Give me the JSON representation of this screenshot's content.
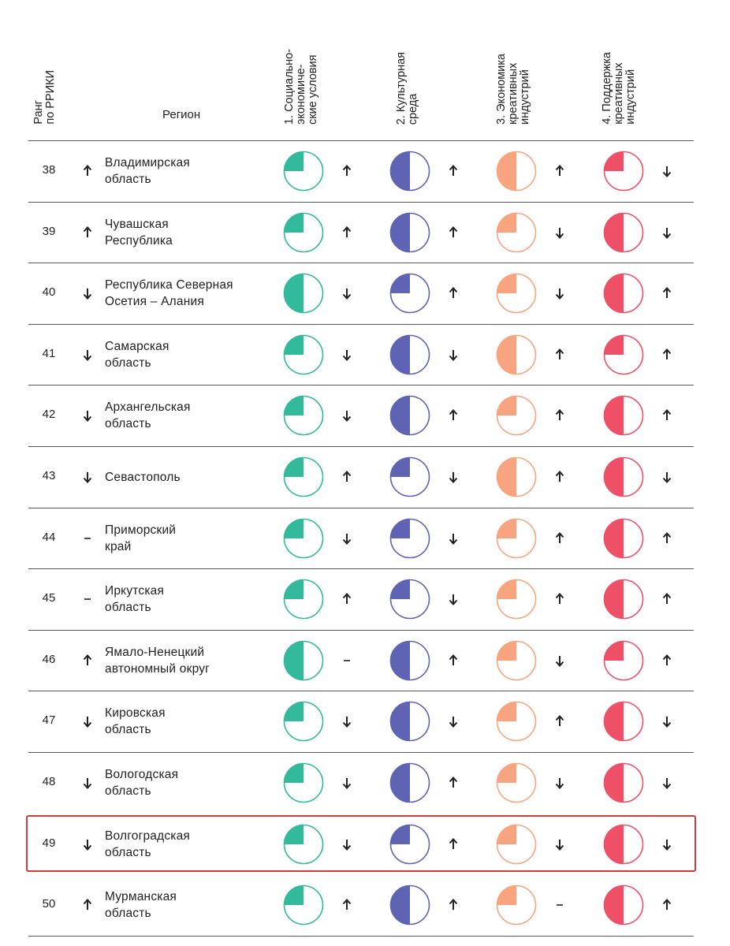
{
  "header": {
    "rank_label": "Ранг\nпо РРИКИ",
    "region_label": "Регион",
    "columns": [
      {
        "label": "1. Социально-\nэкономиче-\nские условия",
        "color": "#33b99b"
      },
      {
        "label": "2. Культурная\nсреда",
        "color": "#5e64b3"
      },
      {
        "label": "3. Экономика\nкреативных\nиндустрий",
        "color": "#f7a47f"
      },
      {
        "label": "4. Поддержка\nкреативных\nиндустрий",
        "color": "#ee5068"
      }
    ]
  },
  "rows": [
    {
      "rank": "38",
      "trend": "up",
      "region": "Владимирская\nобласть",
      "cells": [
        {
          "fill": 0.25,
          "trend": "up"
        },
        {
          "fill": 0.5,
          "trend": "up"
        },
        {
          "fill": 0.5,
          "trend": "up"
        },
        {
          "fill": 0.25,
          "trend": "down"
        }
      ]
    },
    {
      "rank": "39",
      "trend": "up",
      "region": "Чувашская\nРеспублика",
      "cells": [
        {
          "fill": 0.25,
          "trend": "up"
        },
        {
          "fill": 0.5,
          "trend": "up"
        },
        {
          "fill": 0.25,
          "trend": "down"
        },
        {
          "fill": 0.5,
          "trend": "down"
        }
      ]
    },
    {
      "rank": "40",
      "trend": "down",
      "region": "Республика Северная\nОсетия – Алания",
      "cells": [
        {
          "fill": 0.5,
          "trend": "down"
        },
        {
          "fill": 0.25,
          "trend": "up"
        },
        {
          "fill": 0.25,
          "trend": "down"
        },
        {
          "fill": 0.5,
          "trend": "up"
        }
      ]
    },
    {
      "rank": "41",
      "trend": "down",
      "region": "Самарская\nобласть",
      "cells": [
        {
          "fill": 0.25,
          "trend": "down"
        },
        {
          "fill": 0.5,
          "trend": "down"
        },
        {
          "fill": 0.5,
          "trend": "up"
        },
        {
          "fill": 0.25,
          "trend": "up"
        }
      ]
    },
    {
      "rank": "42",
      "trend": "down",
      "region": "Архангельская\nобласть",
      "cells": [
        {
          "fill": 0.25,
          "trend": "down"
        },
        {
          "fill": 0.5,
          "trend": "up"
        },
        {
          "fill": 0.25,
          "trend": "up"
        },
        {
          "fill": 0.5,
          "trend": "up"
        }
      ]
    },
    {
      "rank": "43",
      "trend": "down",
      "region": "Севастополь",
      "cells": [
        {
          "fill": 0.25,
          "trend": "up"
        },
        {
          "fill": 0.25,
          "trend": "down"
        },
        {
          "fill": 0.5,
          "trend": "up"
        },
        {
          "fill": 0.5,
          "trend": "down"
        }
      ]
    },
    {
      "rank": "44",
      "trend": "none",
      "region": "Приморский\nкрай",
      "cells": [
        {
          "fill": 0.25,
          "trend": "down"
        },
        {
          "fill": 0.25,
          "trend": "down"
        },
        {
          "fill": 0.25,
          "trend": "up"
        },
        {
          "fill": 0.5,
          "trend": "up"
        }
      ]
    },
    {
      "rank": "45",
      "trend": "none",
      "region": "Иркутская\nобласть",
      "cells": [
        {
          "fill": 0.25,
          "trend": "up"
        },
        {
          "fill": 0.25,
          "trend": "down"
        },
        {
          "fill": 0.25,
          "trend": "up"
        },
        {
          "fill": 0.5,
          "trend": "up"
        }
      ]
    },
    {
      "rank": "46",
      "trend": "up",
      "region": "Ямало-Ненецкий\nавтономный округ",
      "cells": [
        {
          "fill": 0.5,
          "trend": "none"
        },
        {
          "fill": 0.5,
          "trend": "up"
        },
        {
          "fill": 0.25,
          "trend": "down"
        },
        {
          "fill": 0.25,
          "trend": "up"
        }
      ]
    },
    {
      "rank": "47",
      "trend": "down",
      "region": "Кировская\nобласть",
      "cells": [
        {
          "fill": 0.25,
          "trend": "down"
        },
        {
          "fill": 0.5,
          "trend": "down"
        },
        {
          "fill": 0.25,
          "trend": "up"
        },
        {
          "fill": 0.5,
          "trend": "down"
        }
      ]
    },
    {
      "rank": "48",
      "trend": "down",
      "region": "Вологодская\nобласть",
      "cells": [
        {
          "fill": 0.25,
          "trend": "down"
        },
        {
          "fill": 0.5,
          "trend": "up"
        },
        {
          "fill": 0.25,
          "trend": "down"
        },
        {
          "fill": 0.5,
          "trend": "down"
        }
      ]
    },
    {
      "rank": "49",
      "trend": "down",
      "region": "Волгоградская\nобласть",
      "highlighted": true,
      "cells": [
        {
          "fill": 0.25,
          "trend": "down"
        },
        {
          "fill": 0.25,
          "trend": "up"
        },
        {
          "fill": 0.25,
          "trend": "down"
        },
        {
          "fill": 0.5,
          "trend": "down"
        }
      ]
    },
    {
      "rank": "50",
      "trend": "up",
      "region": "Мурманская\nобласть",
      "cells": [
        {
          "fill": 0.25,
          "trend": "up"
        },
        {
          "fill": 0.5,
          "trend": "up"
        },
        {
          "fill": 0.25,
          "trend": "none"
        },
        {
          "fill": 0.5,
          "trend": "up"
        }
      ]
    }
  ]
}
